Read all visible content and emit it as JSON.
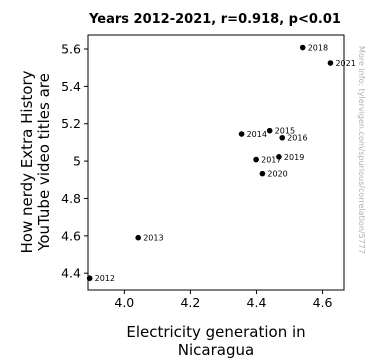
{
  "chart_data": {
    "type": "scatter",
    "title": "Years 2012-2021, r=0.918, p<0.01",
    "xlabel_lines": [
      "Electricity generation in",
      "Nicaragua"
    ],
    "ylabel_lines": [
      "How nerdy Extra History",
      "YouTube video titles are"
    ],
    "xlim": [
      3.89,
      4.665
    ],
    "ylim": [
      4.31,
      5.675
    ],
    "xticks": [
      4.0,
      4.2,
      4.4,
      4.6
    ],
    "xtick_labels": [
      "4.0",
      "4.2",
      "4.4",
      "4.6"
    ],
    "yticks": [
      4.4,
      4.6,
      4.8,
      5.0,
      5.2,
      5.4,
      5.6
    ],
    "ytick_labels": [
      "4.4",
      "4.6",
      "4.8",
      "5",
      "5.2",
      "5.4",
      "5.6"
    ],
    "grid": false,
    "marker_color": "#000000",
    "points": [
      {
        "label": "2012",
        "x": 3.895,
        "y": 4.373
      },
      {
        "label": "2013",
        "x": 4.042,
        "y": 4.59
      },
      {
        "label": "2014",
        "x": 4.355,
        "y": 5.145
      },
      {
        "label": "2015",
        "x": 4.44,
        "y": 5.163
      },
      {
        "label": "2016",
        "x": 4.478,
        "y": 5.125
      },
      {
        "label": "2017",
        "x": 4.399,
        "y": 5.008
      },
      {
        "label": "2018",
        "x": 4.54,
        "y": 5.608
      },
      {
        "label": "2019",
        "x": 4.468,
        "y": 5.023
      },
      {
        "label": "2020",
        "x": 4.418,
        "y": 4.933
      },
      {
        "label": "2021",
        "x": 4.624,
        "y": 5.525
      }
    ]
  },
  "watermark": "More info: tylervigen.com/spurious/correlation/5777"
}
